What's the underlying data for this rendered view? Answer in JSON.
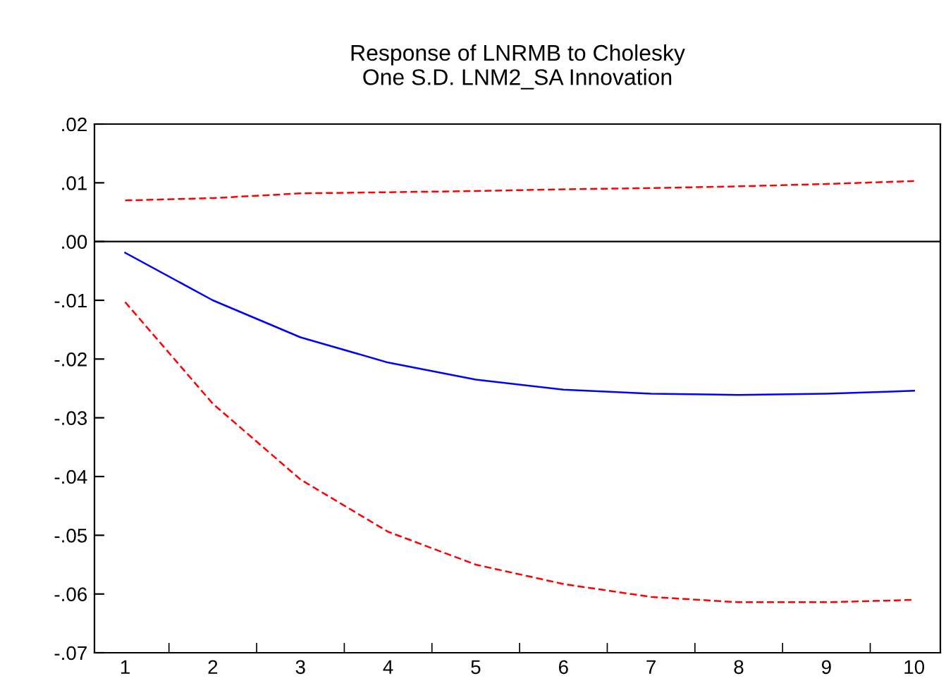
{
  "chart_data": {
    "type": "line",
    "title": "Response of LNRMB to Cholesky\nOne S.D. LNM2_SA Innovation",
    "categories": [
      "1",
      "2",
      "3",
      "4",
      "5",
      "6",
      "7",
      "8",
      "9",
      "10"
    ],
    "series": [
      {
        "color": "#0000ff",
        "line_style": "solid",
        "values": [
          -0.0019,
          -0.01,
          -0.0163,
          -0.0206,
          -0.0235,
          -0.0252,
          -0.0259,
          -0.0261,
          -0.0259,
          -0.0254
        ]
      },
      {
        "color": "#ff0000",
        "line_style": "dashed",
        "values": [
          0.007,
          0.0074,
          0.0082,
          0.0084,
          0.0086,
          0.0089,
          0.0091,
          0.0094,
          0.0098,
          0.0103
        ]
      },
      {
        "color": "#ff0000",
        "line_style": "dashed",
        "values": [
          -0.0103,
          -0.0276,
          -0.0405,
          -0.0494,
          -0.055,
          -0.0583,
          -0.0605,
          -0.0614,
          -0.0614,
          -0.061
        ]
      }
    ],
    "ylim": [
      -0.07,
      0.02
    ],
    "yticks": [
      {
        "value": 0.02,
        "label": ".02"
      },
      {
        "value": 0.01,
        "label": ".01"
      },
      {
        "value": 0.0,
        "label": ".00"
      },
      {
        "value": -0.01,
        "label": "-.01"
      },
      {
        "value": -0.02,
        "label": "-.02"
      },
      {
        "value": -0.03,
        "label": "-.03"
      },
      {
        "value": -0.04,
        "label": "-.04"
      },
      {
        "value": -0.05,
        "label": "-.05"
      },
      {
        "value": -0.06,
        "label": "-.06"
      },
      {
        "value": -0.07,
        "label": "-.07"
      }
    ],
    "ref_lines": [
      {
        "axis": "y",
        "value": 0.0,
        "color": "#000000"
      }
    ],
    "grid": false,
    "legend": false,
    "marker": "none"
  }
}
